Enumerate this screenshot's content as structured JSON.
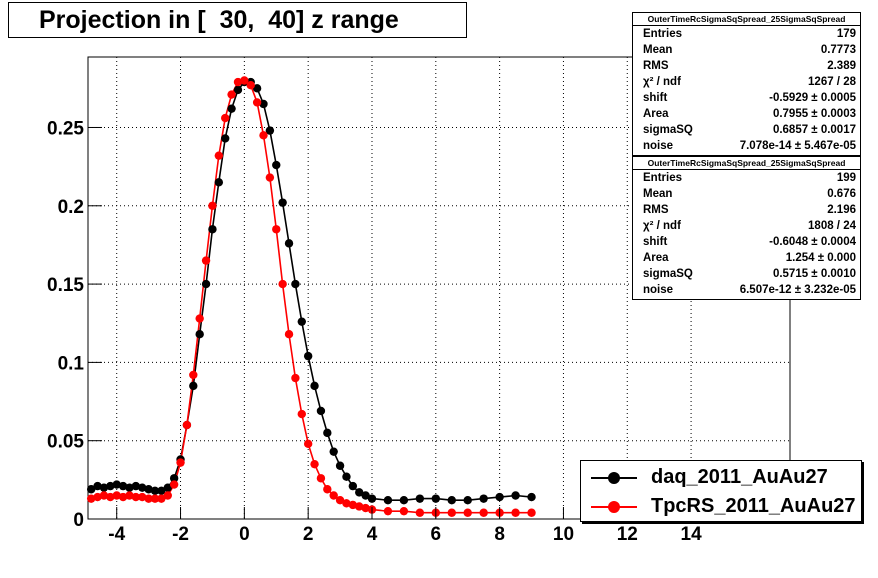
{
  "title": "Projection in [  30,  40] z range",
  "stats": [
    {
      "header": "OuterTimeRcSigmaSqSpread_25SigmaSqSpread",
      "rows": [
        {
          "k": "Entries",
          "v": "179"
        },
        {
          "k": "Mean",
          "v": "0.7773"
        },
        {
          "k": "RMS",
          "v": "2.389"
        },
        {
          "k": "χ² / ndf",
          "v": "1267 / 28"
        },
        {
          "k": "shift",
          "v": "-0.5929 ± 0.0005"
        },
        {
          "k": "Area",
          "v": "0.7955 ± 0.0003"
        },
        {
          "k": "sigmaSQ",
          "v": "0.6857 ± 0.0017"
        },
        {
          "k": "noise",
          "v": "7.078e-14 ± 5.467e-05"
        }
      ]
    },
    {
      "header": "OuterTimeRcSigmaSqSpread_25SigmaSqSpread",
      "rows": [
        {
          "k": "Entries",
          "v": "199"
        },
        {
          "k": "Mean",
          "v": "0.676"
        },
        {
          "k": "RMS",
          "v": "2.196"
        },
        {
          "k": "χ² / ndf",
          "v": "1808 / 24"
        },
        {
          "k": "shift",
          "v": "-0.6048 ± 0.0004"
        },
        {
          "k": "Area",
          "v": "1.254 ± 0.000"
        },
        {
          "k": "sigmaSQ",
          "v": "0.5715 ± 0.0010"
        },
        {
          "k": "noise",
          "v": "6.507e-12 ± 3.232e-05"
        }
      ]
    }
  ],
  "legend": [
    {
      "label": "daq_2011_AuAu27",
      "color": "#000000"
    },
    {
      "label": "TpcRS_2011_AuAu27",
      "color": "#ff0000"
    }
  ],
  "chart_data": {
    "type": "scatter",
    "title": "Projection in [  30,  40] z range",
    "xlim": [
      -4.9,
      17.1
    ],
    "ylim": [
      0,
      0.295
    ],
    "x_ticks": [
      -4,
      -2,
      0,
      2,
      4,
      6,
      8,
      10,
      12,
      14
    ],
    "y_ticks": [
      0,
      0.05,
      0.1,
      0.15,
      0.2,
      0.25
    ],
    "y_tick_labels": [
      "0",
      "0.05",
      "0.1",
      "0.15",
      "0.2",
      "0.25"
    ],
    "grid": true,
    "legend_position": "bottom-right",
    "series": [
      {
        "name": "daq_2011_AuAu27",
        "color": "#000000",
        "x": [
          -4.8,
          -4.6,
          -4.4,
          -4.2,
          -4.0,
          -3.8,
          -3.6,
          -3.4,
          -3.2,
          -3.0,
          -2.8,
          -2.6,
          -2.4,
          -2.2,
          -2.0,
          -1.8,
          -1.6,
          -1.4,
          -1.2,
          -1.0,
          -0.8,
          -0.6,
          -0.4,
          -0.2,
          0.0,
          0.2,
          0.4,
          0.6,
          0.8,
          1.0,
          1.2,
          1.4,
          1.6,
          1.8,
          2.0,
          2.2,
          2.4,
          2.6,
          2.8,
          3.0,
          3.2,
          3.4,
          3.6,
          3.8,
          4.0,
          4.5,
          5.0,
          5.5,
          6.0,
          6.5,
          7.0,
          7.5,
          8.0,
          8.5,
          9.0
        ],
        "y": [
          0.019,
          0.021,
          0.02,
          0.021,
          0.022,
          0.021,
          0.02,
          0.021,
          0.02,
          0.019,
          0.018,
          0.018,
          0.02,
          0.026,
          0.038,
          0.06,
          0.085,
          0.118,
          0.15,
          0.185,
          0.215,
          0.243,
          0.262,
          0.274,
          0.279,
          0.279,
          0.275,
          0.265,
          0.248,
          0.226,
          0.202,
          0.176,
          0.15,
          0.126,
          0.104,
          0.085,
          0.069,
          0.055,
          0.043,
          0.034,
          0.027,
          0.021,
          0.017,
          0.015,
          0.013,
          0.012,
          0.012,
          0.013,
          0.013,
          0.012,
          0.012,
          0.013,
          0.014,
          0.015,
          0.014
        ]
      },
      {
        "name": "TpcRS_2011_AuAu27",
        "color": "#ff0000",
        "x": [
          -4.8,
          -4.6,
          -4.4,
          -4.2,
          -4.0,
          -3.8,
          -3.6,
          -3.4,
          -3.2,
          -3.0,
          -2.8,
          -2.6,
          -2.4,
          -2.2,
          -2.0,
          -1.8,
          -1.6,
          -1.4,
          -1.2,
          -1.0,
          -0.8,
          -0.6,
          -0.4,
          -0.2,
          0.0,
          0.2,
          0.4,
          0.6,
          0.8,
          1.0,
          1.2,
          1.4,
          1.6,
          1.8,
          2.0,
          2.2,
          2.4,
          2.6,
          2.8,
          3.0,
          3.2,
          3.4,
          3.6,
          3.8,
          4.0,
          4.5,
          5.0,
          5.5,
          6.0,
          6.5,
          7.0,
          7.5,
          8.0,
          8.5,
          9.0
        ],
        "y": [
          0.013,
          0.014,
          0.015,
          0.014,
          0.015,
          0.014,
          0.015,
          0.014,
          0.014,
          0.013,
          0.013,
          0.013,
          0.015,
          0.022,
          0.036,
          0.06,
          0.092,
          0.128,
          0.165,
          0.2,
          0.232,
          0.256,
          0.271,
          0.279,
          0.28,
          0.277,
          0.266,
          0.245,
          0.218,
          0.185,
          0.15,
          0.118,
          0.09,
          0.067,
          0.048,
          0.035,
          0.026,
          0.019,
          0.015,
          0.012,
          0.01,
          0.009,
          0.008,
          0.007,
          0.006,
          0.005,
          0.005,
          0.004,
          0.004,
          0.004,
          0.004,
          0.004,
          0.004,
          0.004,
          0.004
        ]
      }
    ]
  }
}
